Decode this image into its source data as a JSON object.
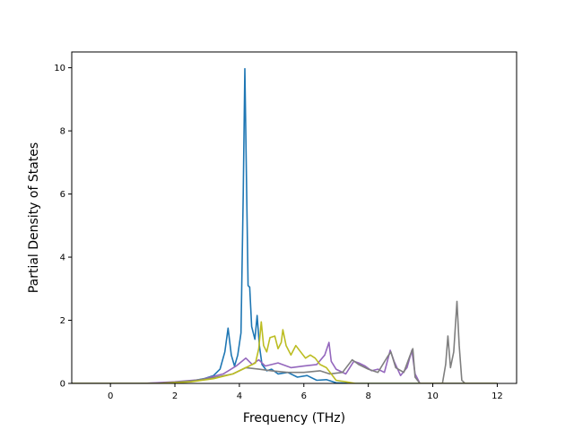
{
  "chart_data": {
    "type": "line",
    "title": "",
    "xlabel": "Frequency (THz)",
    "ylabel": "Partial Density of States",
    "xlim": [
      -1.2,
      12.6
    ],
    "ylim": [
      0,
      10.5
    ],
    "xticks": [
      0,
      2,
      4,
      6,
      8,
      10,
      12
    ],
    "yticks": [
      0,
      2,
      4,
      6,
      8,
      10
    ],
    "grid": false,
    "legend": "none",
    "series": [
      {
        "color": "#1f77b4",
        "points": [
          [
            -1.2,
            0
          ],
          [
            0.8,
            0
          ],
          [
            1.8,
            0.02
          ],
          [
            2.4,
            0.05
          ],
          [
            2.9,
            0.15
          ],
          [
            3.2,
            0.25
          ],
          [
            3.4,
            0.45
          ],
          [
            3.55,
            1.0
          ],
          [
            3.65,
            1.75
          ],
          [
            3.75,
            0.9
          ],
          [
            3.85,
            0.55
          ],
          [
            3.95,
            0.9
          ],
          [
            4.05,
            1.6
          ],
          [
            4.12,
            6.0
          ],
          [
            4.17,
            9.97
          ],
          [
            4.22,
            6.5
          ],
          [
            4.27,
            3.1
          ],
          [
            4.32,
            3.05
          ],
          [
            4.38,
            1.8
          ],
          [
            4.48,
            1.4
          ],
          [
            4.55,
            2.15
          ],
          [
            4.62,
            1.2
          ],
          [
            4.7,
            0.6
          ],
          [
            4.85,
            0.4
          ],
          [
            5.0,
            0.45
          ],
          [
            5.2,
            0.3
          ],
          [
            5.5,
            0.35
          ],
          [
            5.8,
            0.2
          ],
          [
            6.1,
            0.25
          ],
          [
            6.4,
            0.1
          ],
          [
            6.7,
            0.12
          ],
          [
            7.0,
            0.02
          ],
          [
            7.5,
            0
          ],
          [
            12.0,
            0
          ]
        ]
      },
      {
        "color": "#9467bd",
        "points": [
          [
            -1.2,
            0
          ],
          [
            1.0,
            0
          ],
          [
            2.0,
            0.05
          ],
          [
            2.8,
            0.12
          ],
          [
            3.5,
            0.3
          ],
          [
            3.9,
            0.55
          ],
          [
            4.2,
            0.8
          ],
          [
            4.4,
            0.6
          ],
          [
            4.6,
            0.75
          ],
          [
            4.8,
            0.55
          ],
          [
            5.2,
            0.65
          ],
          [
            5.6,
            0.5
          ],
          [
            6.0,
            0.55
          ],
          [
            6.4,
            0.6
          ],
          [
            6.65,
            0.9
          ],
          [
            6.78,
            1.3
          ],
          [
            6.85,
            0.7
          ],
          [
            7.0,
            0.45
          ],
          [
            7.3,
            0.3
          ],
          [
            7.55,
            0.7
          ],
          [
            7.7,
            0.65
          ],
          [
            7.9,
            0.55
          ],
          [
            8.1,
            0.4
          ],
          [
            8.3,
            0.45
          ],
          [
            8.5,
            0.35
          ],
          [
            8.68,
            1.05
          ],
          [
            8.8,
            0.7
          ],
          [
            9.0,
            0.25
          ],
          [
            9.2,
            0.5
          ],
          [
            9.35,
            1.05
          ],
          [
            9.45,
            0.3
          ],
          [
            9.6,
            0
          ],
          [
            12.0,
            0
          ]
        ]
      },
      {
        "color": "#7f7f7f",
        "points": [
          [
            -1.2,
            0
          ],
          [
            1.5,
            0
          ],
          [
            2.5,
            0.08
          ],
          [
            3.2,
            0.18
          ],
          [
            3.8,
            0.3
          ],
          [
            4.2,
            0.5
          ],
          [
            4.6,
            0.45
          ],
          [
            5.0,
            0.4
          ],
          [
            5.5,
            0.35
          ],
          [
            6.0,
            0.35
          ],
          [
            6.5,
            0.4
          ],
          [
            6.8,
            0.3
          ],
          [
            7.2,
            0.35
          ],
          [
            7.5,
            0.75
          ],
          [
            7.7,
            0.6
          ],
          [
            8.0,
            0.45
          ],
          [
            8.3,
            0.35
          ],
          [
            8.6,
            0.85
          ],
          [
            8.7,
            1.0
          ],
          [
            8.85,
            0.5
          ],
          [
            9.1,
            0.35
          ],
          [
            9.3,
            0.9
          ],
          [
            9.38,
            1.1
          ],
          [
            9.45,
            0.2
          ],
          [
            9.6,
            0
          ],
          [
            10.3,
            0
          ],
          [
            10.4,
            0.6
          ],
          [
            10.47,
            1.5
          ],
          [
            10.55,
            0.5
          ],
          [
            10.65,
            1.0
          ],
          [
            10.75,
            2.6
          ],
          [
            10.82,
            1.2
          ],
          [
            10.9,
            0.1
          ],
          [
            11.0,
            0
          ],
          [
            12.0,
            0
          ]
        ]
      },
      {
        "color": "#bcbd22",
        "points": [
          [
            -1.2,
            0
          ],
          [
            1.5,
            0
          ],
          [
            2.5,
            0.05
          ],
          [
            3.2,
            0.15
          ],
          [
            3.8,
            0.3
          ],
          [
            4.2,
            0.5
          ],
          [
            4.5,
            0.65
          ],
          [
            4.6,
            1.1
          ],
          [
            4.68,
            1.95
          ],
          [
            4.75,
            1.2
          ],
          [
            4.85,
            1.0
          ],
          [
            4.95,
            1.45
          ],
          [
            5.1,
            1.5
          ],
          [
            5.2,
            1.1
          ],
          [
            5.3,
            1.3
          ],
          [
            5.35,
            1.7
          ],
          [
            5.45,
            1.2
          ],
          [
            5.6,
            0.9
          ],
          [
            5.75,
            1.2
          ],
          [
            5.9,
            1.0
          ],
          [
            6.05,
            0.8
          ],
          [
            6.2,
            0.9
          ],
          [
            6.35,
            0.8
          ],
          [
            6.5,
            0.6
          ],
          [
            6.7,
            0.5
          ],
          [
            6.85,
            0.3
          ],
          [
            7.0,
            0.1
          ],
          [
            7.3,
            0.05
          ],
          [
            7.6,
            0
          ],
          [
            12.0,
            0
          ]
        ]
      }
    ]
  }
}
